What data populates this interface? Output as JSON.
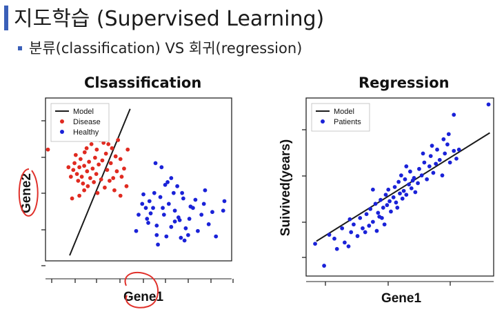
{
  "slide": {
    "title": "지도학습 (Supervised Learning)",
    "subtitle": "분류(classification) VS 회귀(regression)",
    "accent_color": "#3a5fb8"
  },
  "chart_data": [
    {
      "type": "scatter",
      "title": "Clsassification",
      "xlabel": "Gene1",
      "ylabel": "Gene2",
      "grid": false,
      "legend_position": "top-left",
      "legend": [
        "Model",
        "Disease",
        "Healthy"
      ],
      "model_line": {
        "x": [
          1.0,
          3.5
        ],
        "y": [
          0.2,
          5.6
        ]
      },
      "series": [
        {
          "name": "Disease",
          "color": "#e02a20",
          "points": [
            [
              0.1,
              4.1
            ],
            [
              0.95,
              3.45
            ],
            [
              1.05,
              3.1
            ],
            [
              1.15,
              3.35
            ],
            [
              1.2,
              3.6
            ],
            [
              1.25,
              3.9
            ],
            [
              1.3,
              3.2
            ],
            [
              1.35,
              2.95
            ],
            [
              1.4,
              3.45
            ],
            [
              1.45,
              3.75
            ],
            [
              1.5,
              3.1
            ],
            [
              1.55,
              2.85
            ],
            [
              1.6,
              3.5
            ],
            [
              1.62,
              4.0
            ],
            [
              1.7,
              4.15
            ],
            [
              1.72,
              3.3
            ],
            [
              1.75,
              2.75
            ],
            [
              1.8,
              3.65
            ],
            [
              1.85,
              3.05
            ],
            [
              1.9,
              4.3
            ],
            [
              1.95,
              3.4
            ],
            [
              2.0,
              2.9
            ],
            [
              2.05,
              3.8
            ],
            [
              2.1,
              3.2
            ],
            [
              2.12,
              4.1
            ],
            [
              2.15,
              2.5
            ],
            [
              2.2,
              3.55
            ],
            [
              2.25,
              4.45
            ],
            [
              2.3,
              3.0
            ],
            [
              2.35,
              3.7
            ],
            [
              2.4,
              4.35
            ],
            [
              2.45,
              2.7
            ],
            [
              2.5,
              3.95
            ],
            [
              2.55,
              3.35
            ],
            [
              2.6,
              4.3
            ],
            [
              2.65,
              2.95
            ],
            [
              2.7,
              3.6
            ],
            [
              2.75,
              4.15
            ],
            [
              2.8,
              3.05
            ],
            [
              2.85,
              2.6
            ],
            [
              2.9,
              3.85
            ],
            [
              2.95,
              3.3
            ],
            [
              3.0,
              4.45
            ],
            [
              3.1,
              3.75
            ],
            [
              3.15,
              3.1
            ],
            [
              3.25,
              3.4
            ],
            [
              3.35,
              2.75
            ],
            [
              1.4,
              2.4
            ],
            [
              1.1,
              2.3
            ],
            [
              3.4,
              4.1
            ],
            [
              3.1,
              2.4
            ],
            [
              2.05,
              4.55
            ],
            [
              1.6,
              2.6
            ]
          ]
        },
        {
          "name": "Healthy",
          "color": "#1a22d8",
          "points": [
            [
              4.55,
              3.6
            ],
            [
              4.8,
              3.45
            ],
            [
              5.05,
              2.9
            ],
            [
              4.5,
              2.5
            ],
            [
              4.3,
              2.2
            ],
            [
              4.0,
              2.1
            ],
            [
              3.85,
              1.7
            ],
            [
              4.2,
              1.55
            ],
            [
              4.45,
              1.95
            ],
            [
              4.6,
              1.3
            ],
            [
              4.75,
              2.35
            ],
            [
              4.9,
              1.7
            ],
            [
              5.1,
              2.1
            ],
            [
              5.2,
              1.25
            ],
            [
              5.35,
              1.85
            ],
            [
              5.5,
              1.6
            ],
            [
              5.65,
              2.5
            ],
            [
              5.8,
              1.2
            ],
            [
              5.95,
              1.55
            ],
            [
              6.1,
              1.95
            ],
            [
              6.3,
              1.1
            ],
            [
              6.45,
              1.7
            ],
            [
              6.6,
              2.6
            ],
            [
              6.75,
              1.35
            ],
            [
              7.4,
              2.2
            ],
            [
              7.35,
              1.85
            ],
            [
              6.9,
              1.8
            ],
            [
              7.05,
              0.9
            ],
            [
              5.6,
              0.85
            ],
            [
              5.55,
              1.5
            ],
            [
              5.0,
              0.9
            ],
            [
              4.6,
              0.95
            ],
            [
              4.15,
              1.95
            ],
            [
              4.95,
              2.8
            ],
            [
              5.3,
              2.5
            ],
            [
              5.45,
              2.75
            ],
            [
              5.7,
              2.3
            ],
            [
              5.9,
              0.95
            ],
            [
              6.2,
              2.25
            ],
            [
              4.35,
              1.75
            ],
            [
              4.25,
              1.4
            ],
            [
              5.2,
              3.05
            ],
            [
              4.85,
              1.95
            ],
            [
              5.35,
              1.45
            ],
            [
              6.55,
              2.1
            ],
            [
              3.75,
              1.1
            ],
            [
              4.05,
              2.45
            ],
            [
              5.75,
              0.75
            ],
            [
              6.0,
              2.0
            ],
            [
              4.65,
              0.6
            ]
          ]
        }
      ]
    },
    {
      "type": "scatter",
      "title": "Regression",
      "xlabel": "Gene1",
      "ylabel": "Suivived(years)",
      "grid": false,
      "legend_position": "top-left",
      "legend": [
        "Model",
        "Patients"
      ],
      "model_line": {
        "x": [
          0.1,
          6.85
        ],
        "y": [
          1.05,
          5.25
        ]
      },
      "series": [
        {
          "name": "Patients",
          "color": "#1a22d8",
          "points": [
            [
              0.05,
              0.95
            ],
            [
              0.4,
              0.1
            ],
            [
              0.6,
              1.3
            ],
            [
              0.8,
              1.15
            ],
            [
              0.9,
              0.75
            ],
            [
              1.1,
              1.55
            ],
            [
              1.2,
              1.0
            ],
            [
              1.35,
              0.85
            ],
            [
              1.45,
              1.4
            ],
            [
              1.55,
              1.7
            ],
            [
              1.7,
              1.25
            ],
            [
              1.8,
              1.95
            ],
            [
              1.9,
              1.55
            ],
            [
              2.0,
              1.4
            ],
            [
              2.05,
              2.1
            ],
            [
              2.15,
              1.65
            ],
            [
              2.2,
              2.3
            ],
            [
              2.3,
              1.8
            ],
            [
              2.4,
              2.5
            ],
            [
              2.45,
              1.45
            ],
            [
              2.5,
              2.15
            ],
            [
              2.6,
              2.65
            ],
            [
              2.65,
              1.95
            ],
            [
              2.7,
              2.35
            ],
            [
              2.8,
              2.85
            ],
            [
              2.85,
              2.45
            ],
            [
              2.9,
              3.05
            ],
            [
              2.95,
              2.6
            ],
            [
              3.0,
              2.2
            ],
            [
              3.1,
              2.75
            ],
            [
              3.15,
              3.15
            ],
            [
              3.2,
              2.55
            ],
            [
              3.3,
              3.35
            ],
            [
              3.35,
              2.9
            ],
            [
              3.4,
              3.6
            ],
            [
              3.45,
              2.7
            ],
            [
              3.5,
              3.0
            ],
            [
              3.55,
              3.45
            ],
            [
              3.6,
              2.85
            ],
            [
              3.7,
              3.25
            ],
            [
              3.75,
              3.75
            ],
            [
              3.8,
              3.1
            ],
            [
              3.9,
              3.5
            ],
            [
              3.95,
              2.95
            ],
            [
              4.05,
              3.3
            ],
            [
              4.1,
              3.85
            ],
            [
              4.2,
              3.6
            ],
            [
              4.3,
              4.1
            ],
            [
              4.4,
              3.45
            ],
            [
              4.5,
              3.95
            ],
            [
              4.55,
              4.35
            ],
            [
              4.65,
              3.7
            ],
            [
              4.75,
              4.05
            ],
            [
              4.8,
              4.6
            ],
            [
              4.9,
              4.2
            ],
            [
              5.0,
              3.6
            ],
            [
              5.1,
              4.45
            ],
            [
              5.2,
              4.8
            ],
            [
              5.3,
              4.1
            ],
            [
              5.45,
              4.55
            ],
            [
              5.55,
              4.25
            ],
            [
              5.05,
              5.0
            ],
            [
              5.25,
              5.2
            ],
            [
              5.65,
              4.6
            ],
            [
              5.45,
              5.95
            ],
            [
              6.8,
              6.35
            ],
            [
              2.55,
              2.0
            ],
            [
              3.25,
              2.35
            ],
            [
              2.3,
              3.05
            ],
            [
              3.6,
              3.95
            ],
            [
              4.6,
              4.75
            ],
            [
              1.4,
              1.9
            ],
            [
              3.85,
              3.4
            ],
            [
              4.25,
              4.45
            ],
            [
              2.75,
              1.7
            ]
          ]
        }
      ]
    }
  ]
}
